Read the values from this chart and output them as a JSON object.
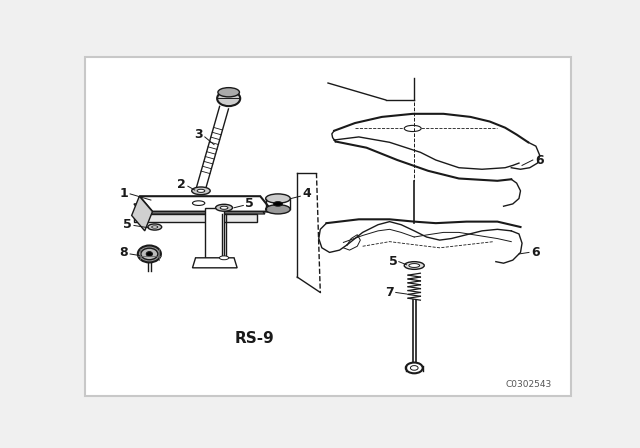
{
  "bg_color": "#f0f0f0",
  "line_color": "#1a1a1a",
  "fig_width": 6.4,
  "fig_height": 4.48,
  "dpi": 100,
  "rs_label": "RS-9",
  "part_code": "C0302543",
  "border_color": "#c8c8c8"
}
